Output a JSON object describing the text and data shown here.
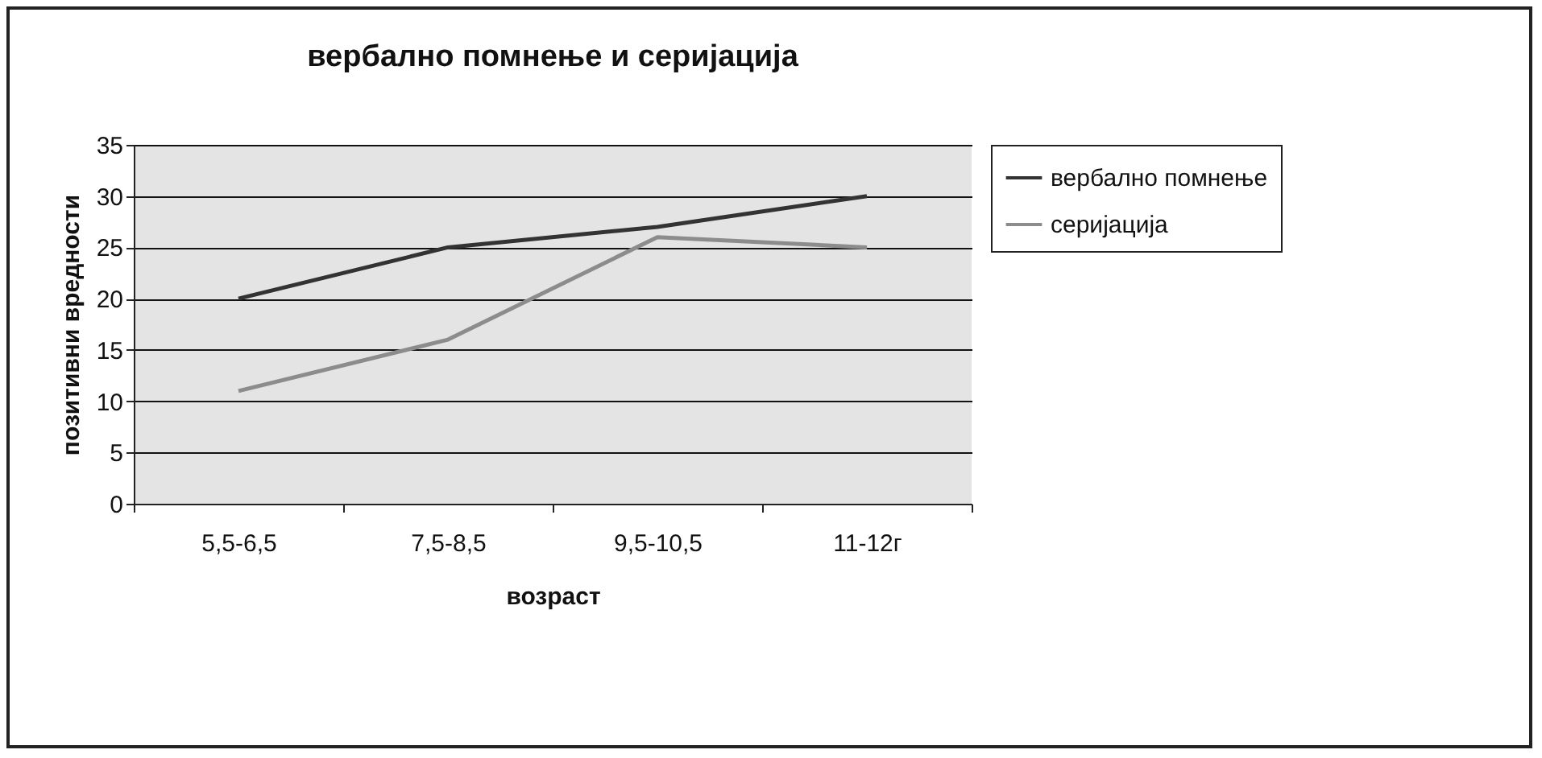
{
  "chart_data": {
    "type": "line",
    "title": "вербално помнење и серијација",
    "xlabel": "возраст",
    "ylabel": "позитивни вредности",
    "categories": [
      "5,5-6,5",
      "7,5-8,5",
      "9,5-10,5",
      "11-12г"
    ],
    "series": [
      {
        "name": "вербално помнење",
        "color": "#333333",
        "values": [
          20,
          25,
          27,
          30
        ]
      },
      {
        "name": "серијација",
        "color": "#8c8c8c",
        "values": [
          11,
          16,
          26,
          25
        ]
      }
    ],
    "ylim": [
      0,
      35
    ],
    "yticks": [
      0,
      5,
      10,
      15,
      20,
      25,
      30,
      35
    ],
    "grid": "y",
    "legend": "right"
  }
}
